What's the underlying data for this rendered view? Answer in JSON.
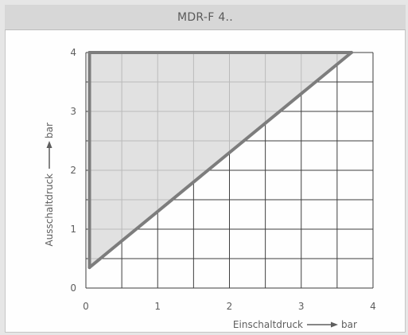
{
  "window": {
    "title": "MDR-F 4.."
  },
  "colors": {
    "background": "#e6e6e6",
    "panel": "#fefefe",
    "title_bar": "#d7d7d7",
    "grid": "#3f3f3f",
    "region_fill": "#d9d9d9",
    "line": "#7d7d7d",
    "text": "#5e5e5e"
  },
  "chart_data": {
    "type": "area",
    "title": "MDR-F 4..",
    "xlabel": "Einschaltdruck",
    "xunit": "bar",
    "ylabel": "Ausschaltdruck",
    "yunit": "bar",
    "xlim": [
      0,
      4
    ],
    "ylim": [
      0,
      4
    ],
    "x_ticks": [
      "0",
      "1",
      "2",
      "3",
      "4"
    ],
    "y_ticks": [
      "0",
      "1",
      "2",
      "3",
      "4"
    ],
    "grid": true,
    "grid_step": 0.5,
    "region": [
      {
        "x": 0.05,
        "y": 0.35
      },
      {
        "x": 0.05,
        "y": 4.0
      },
      {
        "x": 3.7,
        "y": 4.0
      }
    ],
    "boundary": {
      "x": [
        0.05,
        0.05,
        3.7,
        0.05
      ],
      "y": [
        4.0,
        0.35,
        4.0,
        4.0
      ]
    }
  }
}
